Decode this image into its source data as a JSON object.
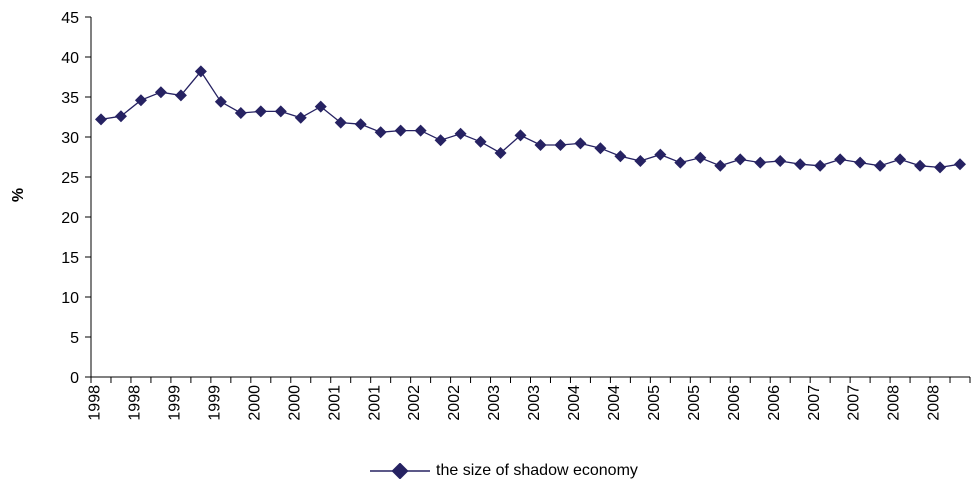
{
  "chart_data": {
    "type": "line",
    "ylabel": "%",
    "xlabel": "",
    "ylim": [
      0,
      45
    ],
    "yticks": [
      0,
      5,
      10,
      15,
      20,
      25,
      30,
      35,
      40,
      45
    ],
    "grid": false,
    "legend_position": "bottom",
    "categories": [
      "1998",
      "1998",
      "1998",
      "1998",
      "1999",
      "1999",
      "1999",
      "1999",
      "2000",
      "2000",
      "2000",
      "2000",
      "2001",
      "2001",
      "2001",
      "2001",
      "2002",
      "2002",
      "2002",
      "2002",
      "2003",
      "2003",
      "2003",
      "2003",
      "2004",
      "2004",
      "2004",
      "2004",
      "2005",
      "2005",
      "2005",
      "2005",
      "2006",
      "2006",
      "2006",
      "2006",
      "2007",
      "2007",
      "2007",
      "2007",
      "2008",
      "2008",
      "2008",
      "2008"
    ],
    "series": [
      {
        "name": "the size of shadow economy",
        "color": "#262262",
        "values": [
          32.2,
          32.6,
          34.6,
          35.6,
          35.2,
          38.2,
          34.4,
          33.0,
          33.2,
          33.2,
          32.4,
          33.8,
          31.8,
          31.6,
          30.6,
          30.8,
          30.8,
          29.6,
          30.4,
          29.4,
          28.0,
          30.2,
          29.0,
          29.0,
          29.2,
          28.6,
          27.6,
          27.0,
          27.8,
          26.8,
          27.4,
          26.4,
          27.2,
          26.8,
          27.0,
          26.6,
          26.4,
          27.2,
          26.8,
          26.4,
          27.2,
          26.4,
          26.2,
          26.6
        ]
      }
    ]
  }
}
